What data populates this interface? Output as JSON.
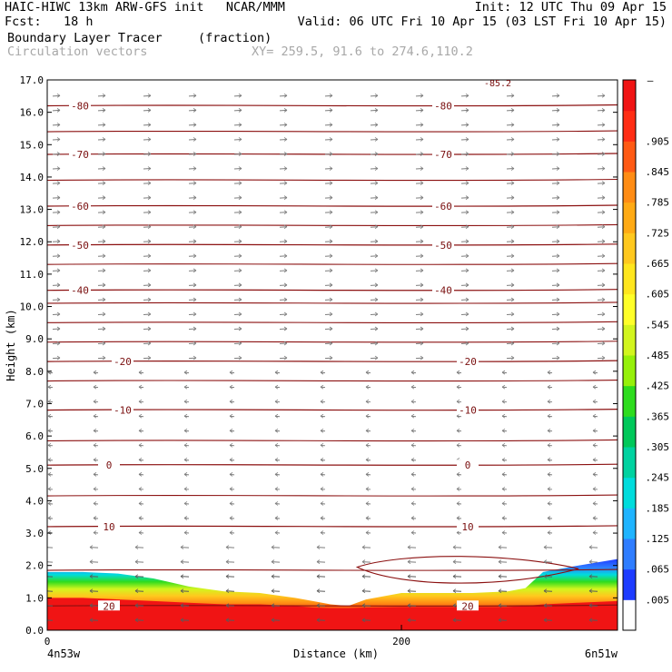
{
  "header": {
    "line1_left": "HAIC-HIWC 13km ARW-GFS init   NCAR/MMM",
    "line1_right": "Init: 12 UTC Thu 09 Apr 15",
    "line2_left": "Fcst:   18 h",
    "line2_right": "Valid: 06 UTC Fri 10 Apr 15 (03 LST Fri 10 Apr 15)",
    "field_name": "Boundary Layer Tracer",
    "field_unit": "(fraction)",
    "vector_name": "Circulation vectors",
    "cross_section": "XY= 259.5, 91.6 to 274.6,110.2"
  },
  "chart_data": {
    "type": "heatmap",
    "xlabel": "Distance (km)",
    "ylabel": "Height (km)",
    "xlim": [
      0,
      322
    ],
    "ylim": [
      0,
      17
    ],
    "x_ticks": [
      {
        "value": 0,
        "label": "0"
      },
      {
        "value": 200,
        "label": "200"
      }
    ],
    "x_endpoint_labels": {
      "left": "4n53w",
      "right": "6n51w"
    },
    "y_ticks": [
      "0.0",
      "1.0",
      "2.0",
      "3.0",
      "4.0",
      "5.0",
      "6.0",
      "7.0",
      "8.0",
      "9.0",
      "10.0",
      "11.0",
      "12.0",
      "13.0",
      "14.0",
      "15.0",
      "16.0",
      "17.0"
    ],
    "colorbar": {
      "labels": [
        ".005",
        ".065",
        ".125",
        ".185",
        ".245",
        ".305",
        ".365",
        ".425",
        ".485",
        ".545",
        ".605",
        ".665",
        ".725",
        ".785",
        ".845",
        ".905"
      ],
      "top_label": "–",
      "colors": [
        "#ffffff",
        "#1e3cff",
        "#2f7dff",
        "#1fb4ff",
        "#00dcdc",
        "#00d2a0",
        "#00c85a",
        "#2edc1e",
        "#96f00a",
        "#d2f51e",
        "#ffff28",
        "#ffe61e",
        "#ffc81e",
        "#ffaa14",
        "#ff8c14",
        "#ff5a14",
        "#ff2d14",
        "#f01414"
      ]
    },
    "temperature_contours": [
      {
        "label": "-80",
        "height_km": 16.2
      },
      {
        "label": "-70",
        "height_km": 14.7
      },
      {
        "label": "-60",
        "height_km": 13.1
      },
      {
        "label": "-50",
        "height_km": 11.9
      },
      {
        "label": "-40",
        "height_km": 10.5
      },
      {
        "label": "-20",
        "height_km": 8.3
      },
      {
        "label": "-10",
        "height_km": 6.8
      },
      {
        "label": "0",
        "height_km": 5.1
      },
      {
        "label": "10",
        "height_km": 3.2
      },
      {
        "label": "20",
        "height_km": 0.75
      }
    ],
    "top_edge_label": "-85.2",
    "tracer_layer": {
      "x_km": [
        0,
        20,
        40,
        60,
        80,
        100,
        120,
        140,
        150,
        160,
        170,
        180,
        200,
        220,
        240,
        260,
        270,
        280,
        300,
        322
      ],
      "top_height_km": [
        1.8,
        1.8,
        1.75,
        1.6,
        1.35,
        1.2,
        1.15,
        1.0,
        0.9,
        0.8,
        0.75,
        0.95,
        1.15,
        1.15,
        1.15,
        1.2,
        1.3,
        1.8,
        2.0,
        2.2
      ],
      "red_top_height_km": [
        1.0,
        1.0,
        0.95,
        0.9,
        0.85,
        0.8,
        0.8,
        0.75,
        0.7,
        0.68,
        0.68,
        0.7,
        0.72,
        0.72,
        0.72,
        0.72,
        0.75,
        0.8,
        0.85,
        0.9
      ]
    }
  }
}
